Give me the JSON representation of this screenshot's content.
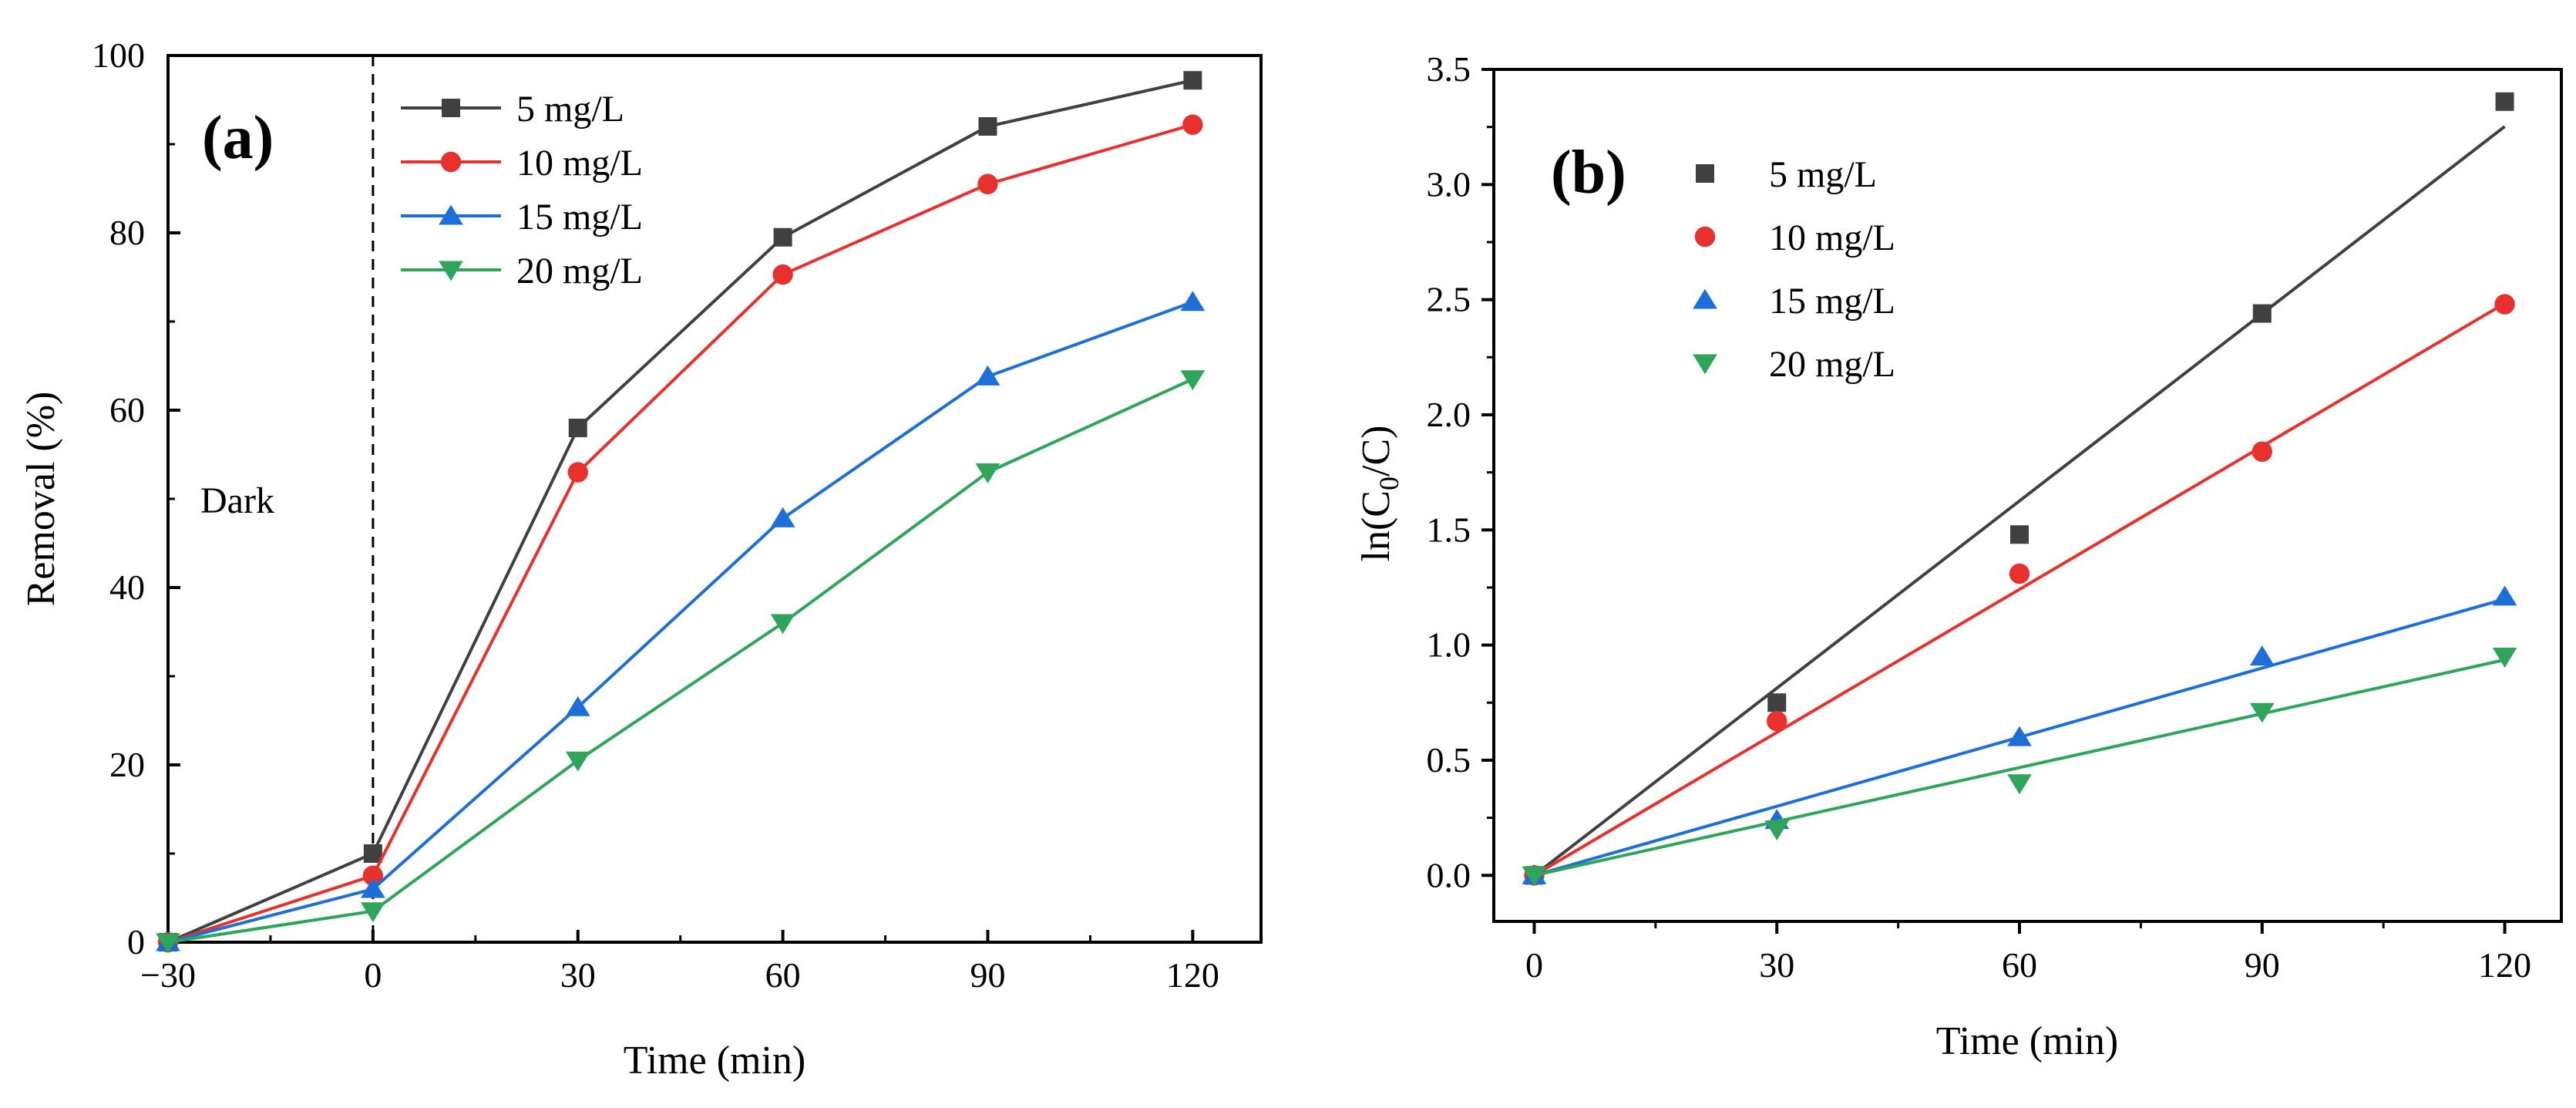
{
  "chart_data": [
    {
      "panel": "(a)",
      "type": "line",
      "xlabel": "Time (min)",
      "ylabel": "Removal (%)",
      "xlim": [
        -30,
        130
      ],
      "ylim": [
        0,
        100
      ],
      "xticks": [
        -30,
        0,
        30,
        60,
        90,
        120
      ],
      "yticks": [
        0,
        20,
        40,
        60,
        80,
        100
      ],
      "x": [
        -30,
        0,
        30,
        60,
        90,
        120
      ],
      "annotation": "Dark",
      "dark_line_x": 0,
      "legend_position": "top-left",
      "series": [
        {
          "name": "5 mg/L",
          "color": "#404040",
          "marker": "square",
          "values": [
            0,
            10,
            58,
            79.5,
            92,
            97.2
          ]
        },
        {
          "name": "10 mg/L",
          "color": "#e8302d",
          "marker": "circle",
          "values": [
            0,
            7.5,
            53,
            75.3,
            85.5,
            92.2
          ]
        },
        {
          "name": "15 mg/L",
          "color": "#1c6fd8",
          "marker": "triangle-up",
          "values": [
            0,
            6,
            26.5,
            47.8,
            63.8,
            72.2
          ]
        },
        {
          "name": "20 mg/L",
          "color": "#2ea55b",
          "marker": "triangle-down",
          "values": [
            0,
            3.5,
            20.5,
            36,
            53,
            63.5
          ]
        }
      ]
    },
    {
      "panel": "(b)",
      "type": "scatter",
      "xlabel": "Time (min)",
      "ylabel_base": "ln(C",
      "ylabel_sub": "0",
      "ylabel_tail": "/C)",
      "xlim": [
        -5,
        127
      ],
      "ylim": [
        -0.2,
        3.5
      ],
      "xticks": [
        0,
        30,
        60,
        90,
        120
      ],
      "yticks": [
        "0.0",
        "0.5",
        "1.0",
        "1.5",
        "2.0",
        "2.5",
        "3.0",
        "3.5"
      ],
      "x": [
        0,
        30,
        60,
        90,
        120
      ],
      "legend_position": "top-left",
      "series": [
        {
          "name": "5 mg/L",
          "color": "#404040",
          "marker": "square",
          "values": [
            0,
            0.75,
            1.48,
            2.44,
            3.36
          ],
          "fit_slope": 0.0271
        },
        {
          "name": "10 mg/L",
          "color": "#e8302d",
          "marker": "circle",
          "values": [
            0,
            0.67,
            1.31,
            1.84,
            2.48
          ],
          "fit_slope": 0.0207
        },
        {
          "name": "15 mg/L",
          "color": "#1c6fd8",
          "marker": "triangle-up",
          "values": [
            0,
            0.24,
            0.6,
            0.95,
            1.21
          ],
          "fit_slope": 0.01
        },
        {
          "name": "20 mg/L",
          "color": "#2ea55b",
          "marker": "triangle-down",
          "values": [
            0,
            0.2,
            0.4,
            0.71,
            0.95
          ],
          "fit_slope": 0.0078
        }
      ]
    }
  ]
}
